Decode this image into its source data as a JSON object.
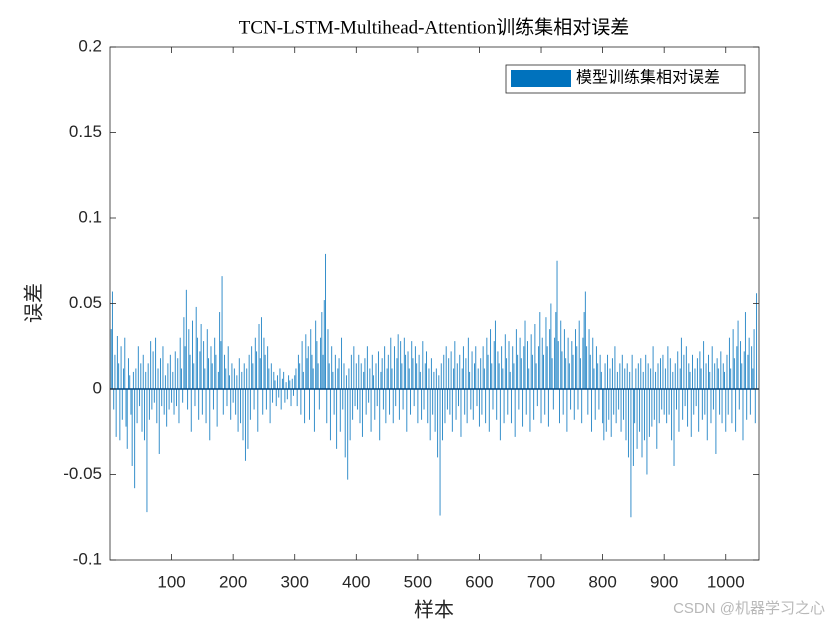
{
  "chart_data": {
    "type": "bar",
    "title": "TCN-LSTM-Multihead-Attention训练集相对误差",
    "x_label": "样本",
    "y_label": "误差",
    "legend_position": "upper right",
    "watermark": "CSDN @机器学习之心",
    "series": [
      {
        "name": "模型训练集相对误差",
        "color": "#0072bd",
        "x": [
          2,
          4,
          6,
          8,
          10,
          12,
          14,
          16,
          18,
          20,
          22,
          24,
          26,
          28,
          30,
          32,
          34,
          36,
          38,
          40,
          42,
          44,
          46,
          48,
          50,
          52,
          54,
          56,
          58,
          60,
          62,
          64,
          66,
          68,
          70,
          72,
          74,
          76,
          78,
          80,
          82,
          84,
          86,
          88,
          90,
          92,
          94,
          96,
          98,
          100,
          102,
          104,
          106,
          108,
          110,
          112,
          114,
          116,
          118,
          120,
          122,
          124,
          126,
          128,
          130,
          132,
          134,
          136,
          138,
          140,
          142,
          144,
          146,
          148,
          150,
          152,
          154,
          156,
          158,
          160,
          162,
          164,
          166,
          168,
          170,
          172,
          174,
          176,
          178,
          180,
          182,
          184,
          186,
          188,
          190,
          192,
          194,
          196,
          198,
          200,
          202,
          204,
          206,
          208,
          210,
          212,
          214,
          216,
          218,
          220,
          222,
          224,
          226,
          228,
          230,
          232,
          234,
          236,
          238,
          240,
          242,
          244,
          246,
          248,
          250,
          252,
          254,
          256,
          258,
          260,
          262,
          264,
          266,
          268,
          270,
          272,
          274,
          276,
          278,
          280,
          282,
          284,
          286,
          288,
          290,
          292,
          294,
          296,
          298,
          300,
          302,
          304,
          306,
          308,
          310,
          312,
          314,
          316,
          318,
          320,
          322,
          324,
          326,
          328,
          330,
          332,
          334,
          336,
          338,
          340,
          342,
          344,
          346,
          348,
          350,
          352,
          354,
          356,
          358,
          360,
          362,
          364,
          366,
          368,
          370,
          372,
          374,
          376,
          378,
          380,
          382,
          384,
          386,
          388,
          390,
          392,
          394,
          396,
          398,
          400,
          402,
          404,
          406,
          408,
          410,
          412,
          414,
          416,
          418,
          420,
          422,
          424,
          426,
          428,
          430,
          432,
          434,
          436,
          438,
          440,
          442,
          444,
          446,
          448,
          450,
          452,
          454,
          456,
          458,
          460,
          462,
          464,
          466,
          468,
          470,
          472,
          474,
          476,
          478,
          480,
          482,
          484,
          486,
          488,
          490,
          492,
          494,
          496,
          498,
          500,
          502,
          504,
          506,
          508,
          510,
          512,
          514,
          516,
          518,
          520,
          522,
          524,
          526,
          528,
          530,
          532,
          534,
          536,
          538,
          540,
          542,
          544,
          546,
          548,
          550,
          552,
          554,
          556,
          558,
          560,
          562,
          564,
          566,
          568,
          570,
          572,
          574,
          576,
          578,
          580,
          582,
          584,
          586,
          588,
          590,
          592,
          594,
          596,
          598,
          600,
          602,
          604,
          606,
          608,
          610,
          612,
          614,
          616,
          618,
          620,
          622,
          624,
          626,
          628,
          630,
          632,
          634,
          636,
          638,
          640,
          642,
          644,
          646,
          648,
          650,
          652,
          654,
          656,
          658,
          660,
          662,
          664,
          666,
          668,
          670,
          672,
          674,
          676,
          678,
          680,
          682,
          684,
          686,
          688,
          690,
          692,
          694,
          696,
          698,
          700,
          702,
          704,
          706,
          708,
          710,
          712,
          714,
          716,
          718,
          720,
          722,
          724,
          726,
          728,
          730,
          732,
          734,
          736,
          738,
          740,
          742,
          744,
          746,
          748,
          750,
          752,
          754,
          756,
          758,
          760,
          762,
          764,
          766,
          768,
          770,
          772,
          774,
          776,
          778,
          780,
          782,
          784,
          786,
          788,
          790,
          792,
          794,
          796,
          798,
          800,
          802,
          804,
          806,
          808,
          810,
          812,
          814,
          816,
          818,
          820,
          822,
          824,
          826,
          828,
          830,
          832,
          834,
          836,
          838,
          840,
          842,
          844,
          846,
          848,
          850,
          852,
          854,
          856,
          858,
          860,
          862,
          864,
          866,
          868,
          870,
          872,
          874,
          876,
          878,
          880,
          882,
          884,
          886,
          888,
          890,
          892,
          894,
          896,
          898,
          900,
          902,
          904,
          906,
          908,
          910,
          912,
          914,
          916,
          918,
          920,
          922,
          924,
          926,
          928,
          930,
          932,
          934,
          936,
          938,
          940,
          942,
          944,
          946,
          948,
          950,
          952,
          954,
          956,
          958,
          960,
          962,
          964,
          966,
          968,
          970,
          972,
          974,
          976,
          978,
          980,
          982,
          984,
          986,
          988,
          990,
          992,
          994,
          996,
          998,
          1000,
          1002,
          1004,
          1006,
          1008,
          1010,
          1012,
          1014,
          1016,
          1018,
          1020,
          1022,
          1024,
          1026,
          1028,
          1030,
          1032,
          1034,
          1036,
          1038,
          1040,
          1042,
          1044,
          1046,
          1048,
          1050
        ],
        "values": [
          0.035,
          0.057,
          -0.012,
          0.02,
          -0.028,
          0.031,
          0.015,
          -0.03,
          0.025,
          -0.018,
          0.012,
          0.03,
          -0.022,
          -0.035,
          0.018,
          0.008,
          -0.015,
          -0.045,
          0.01,
          -0.058,
          0.012,
          -0.02,
          0.025,
          -0.01,
          0.015,
          -0.025,
          0.02,
          -0.03,
          0.01,
          -0.072,
          0.015,
          -0.018,
          0.028,
          -0.012,
          0.022,
          -0.008,
          0.03,
          -0.02,
          0.012,
          -0.038,
          0.018,
          -0.01,
          0.025,
          -0.015,
          0.008,
          -0.022,
          0.015,
          -0.012,
          0.02,
          -0.008,
          0.01,
          -0.015,
          0.022,
          -0.01,
          0.018,
          -0.02,
          0.03,
          0.012,
          -0.008,
          0.042,
          0.025,
          0.058,
          -0.012,
          0.035,
          0.02,
          -0.025,
          0.04,
          0.015,
          -0.01,
          0.048,
          0.03,
          -0.018,
          0.022,
          0.038,
          -0.015,
          0.028,
          0.012,
          -0.02,
          0.035,
          0.018,
          -0.03,
          0.025,
          0.015,
          -0.012,
          0.03,
          0.02,
          -0.022,
          0.01,
          0.045,
          0.028,
          0.066,
          -0.015,
          0.02,
          0.012,
          -0.01,
          0.025,
          0.008,
          -0.018,
          0.015,
          -0.008,
          0.012,
          -0.015,
          0.008,
          -0.025,
          0.018,
          -0.02,
          0.01,
          -0.03,
          0.015,
          -0.042,
          0.012,
          -0.035,
          0.02,
          -0.018,
          0.025,
          0.015,
          -0.012,
          0.03,
          0.022,
          -0.025,
          0.038,
          0.018,
          0.042,
          -0.015,
          0.03,
          0.02,
          -0.012,
          0.025,
          0.012,
          -0.02,
          0.015,
          -0.008,
          0.01,
          0.005,
          -0.01,
          0.008,
          -0.005,
          0.012,
          -0.012,
          0.006,
          0.01,
          -0.008,
          0.004,
          -0.006,
          0.008,
          0.005,
          -0.01,
          0.006,
          -0.004,
          0.008,
          0.012,
          -0.01,
          0.02,
          0.015,
          -0.015,
          0.028,
          0.01,
          -0.02,
          0.032,
          0.018,
          0.025,
          -0.018,
          0.035,
          0.02,
          0.012,
          -0.025,
          0.04,
          0.028,
          0.015,
          -0.012,
          0.03,
          0.045,
          0.02,
          0.052,
          0.079,
          -0.02,
          0.035,
          0.015,
          -0.03,
          0.025,
          0.01,
          -0.015,
          0.02,
          -0.035,
          0.012,
          0.018,
          -0.025,
          0.03,
          -0.012,
          0.015,
          -0.04,
          0.008,
          -0.053,
          0.012,
          -0.03,
          0.02,
          -0.018,
          0.025,
          -0.01,
          0.015,
          -0.012,
          0.02,
          -0.02,
          0.015,
          -0.028,
          0.01,
          0.018,
          -0.015,
          0.025,
          -0.008,
          0.012,
          -0.025,
          0.02,
          0.008,
          -0.018,
          0.015,
          -0.01,
          0.022,
          -0.03,
          0.01,
          0.018,
          -0.012,
          0.025,
          -0.02,
          0.012,
          0.02,
          -0.015,
          0.03,
          0.012,
          -0.02,
          0.025,
          -0.01,
          0.018,
          0.032,
          -0.018,
          0.028,
          0.015,
          -0.012,
          0.03,
          0.02,
          -0.025,
          0.022,
          0.012,
          -0.015,
          0.028,
          0.018,
          -0.01,
          0.025,
          0.015,
          -0.02,
          0.02,
          0.01,
          -0.018,
          0.028,
          -0.012,
          0.015,
          0.022,
          -0.02,
          0.012,
          -0.03,
          0.018,
          -0.015,
          0.01,
          -0.025,
          0.012,
          -0.04,
          0.008,
          -0.074,
          0.015,
          -0.03,
          0.02,
          -0.02,
          0.025,
          -0.012,
          0.018,
          -0.015,
          0.022,
          -0.025,
          0.012,
          0.028,
          -0.018,
          0.015,
          -0.01,
          0.02,
          -0.028,
          0.012,
          0.025,
          -0.015,
          0.018,
          -0.02,
          0.03,
          0.01,
          -0.012,
          0.022,
          -0.018,
          0.015,
          0.025,
          -0.01,
          0.012,
          -0.022,
          0.018,
          -0.015,
          0.025,
          0.012,
          -0.02,
          0.03,
          0.02,
          -0.025,
          0.035,
          0.015,
          -0.012,
          0.028,
          0.04,
          -0.018,
          0.022,
          0.015,
          -0.03,
          0.025,
          0.012,
          -0.02,
          0.032,
          0.018,
          -0.015,
          0.028,
          0.01,
          -0.02,
          0.025,
          0.015,
          -0.028,
          0.035,
          0.02,
          -0.012,
          0.03,
          0.018,
          -0.022,
          0.025,
          0.04,
          -0.015,
          0.028,
          0.012,
          -0.025,
          0.032,
          0.02,
          -0.018,
          0.038,
          0.015,
          -0.01,
          0.025,
          0.045,
          -0.02,
          0.03,
          0.02,
          -0.015,
          0.042,
          0.025,
          -0.022,
          0.035,
          0.05,
          0.018,
          -0.012,
          0.03,
          0.045,
          0.075,
          0.028,
          -0.02,
          0.04,
          0.022,
          -0.015,
          0.035,
          0.018,
          -0.025,
          0.03,
          0.015,
          -0.012,
          0.028,
          0.02,
          -0.018,
          0.035,
          0.025,
          -0.012,
          0.04,
          0.018,
          -0.02,
          0.03,
          0.045,
          0.057,
          0.025,
          -0.015,
          0.035,
          0.02,
          -0.025,
          0.03,
          0.012,
          -0.018,
          0.025,
          0.015,
          -0.012,
          0.02,
          0.01,
          -0.02,
          -0.03,
          0.015,
          -0.025,
          0.02,
          -0.018,
          0.012,
          -0.028,
          0.018,
          -0.015,
          0.025,
          -0.02,
          0.01,
          -0.012,
          0.015,
          -0.025,
          0.02,
          -0.018,
          0.012,
          -0.03,
          0.015,
          -0.04,
          0.01,
          -0.075,
          0.02,
          -0.045,
          -0.02,
          0.012,
          -0.035,
          0.015,
          -0.025,
          0.018,
          -0.04,
          0.01,
          -0.03,
          0.02,
          -0.05,
          0.015,
          -0.028,
          0.012,
          -0.022,
          0.025,
          -0.018,
          0.01,
          -0.035,
          0.015,
          -0.02,
          0.018,
          -0.012,
          0.02,
          -0.015,
          0.012,
          -0.02,
          0.025,
          -0.015,
          0.018,
          -0.03,
          0.01,
          -0.045,
          0.015,
          -0.012,
          0.022,
          -0.025,
          0.012,
          0.03,
          -0.018,
          0.02,
          -0.01,
          0.025,
          -0.022,
          0.015,
          0.01,
          -0.028,
          0.02,
          -0.015,
          0.012,
          -0.01,
          0.018,
          -0.025,
          0.022,
          0.012,
          -0.018,
          0.028,
          -0.015,
          0.015,
          -0.03,
          0.02,
          0.01,
          -0.02,
          0.025,
          -0.012,
          0.015,
          -0.038,
          0.018,
          0.012,
          -0.015,
          0.022,
          -0.02,
          0.015,
          0.01,
          -0.025,
          0.02,
          -0.015,
          0.03,
          0.012,
          -0.02,
          0.035,
          0.018,
          -0.025,
          0.025,
          0.04,
          -0.012,
          0.028,
          0.015,
          -0.03,
          0.022,
          0.045,
          -0.018,
          0.02,
          0.03,
          -0.015,
          0.025,
          0.012,
          0.035,
          -0.02,
          0.056
        ]
      }
    ],
    "xlim": [
      0,
      1054
    ],
    "xticks": [
      100,
      200,
      300,
      400,
      500,
      600,
      700,
      800,
      900,
      1000
    ],
    "ylim": [
      -0.1,
      0.2
    ],
    "yticks": [
      -0.1,
      -0.05,
      0,
      0.05,
      0.1,
      0.15,
      0.2
    ],
    "grid": false
  }
}
